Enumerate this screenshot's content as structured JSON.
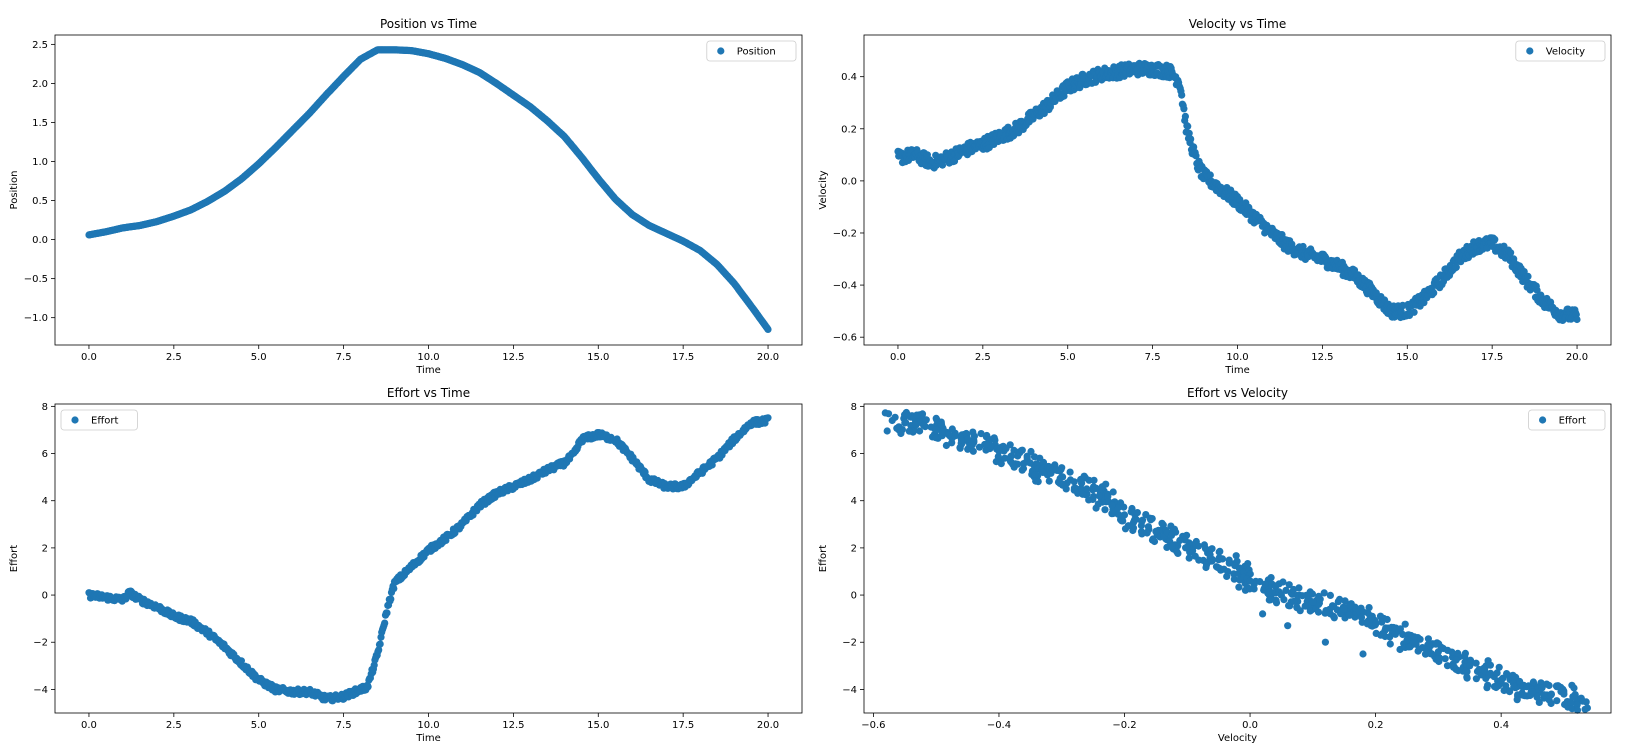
{
  "chart_data": [
    {
      "type": "scatter",
      "title": "Position vs Time",
      "xlabel": "Time",
      "ylabel": "Position",
      "xlim": [
        -1.0,
        21.0
      ],
      "ylim": [
        -1.35,
        2.62
      ],
      "xticks": [
        0.0,
        2.5,
        5.0,
        7.5,
        10.0,
        12.5,
        15.0,
        17.5,
        20.0
      ],
      "xtick_labels": [
        "0.0",
        "2.5",
        "5.0",
        "7.5",
        "10.0",
        "12.5",
        "15.0",
        "17.5",
        "20.0"
      ],
      "yticks": [
        -1.0,
        -0.5,
        0.0,
        0.5,
        1.0,
        1.5,
        2.0,
        2.5
      ],
      "ytick_labels": [
        "−1.0",
        "−0.5",
        "0.0",
        "0.5",
        "1.0",
        "1.5",
        "2.0",
        "2.5"
      ],
      "legend": "top-right",
      "series": [
        {
          "name": "Position",
          "x": [
            0,
            0.5,
            1,
            1.5,
            2,
            2.5,
            3,
            3.5,
            4,
            4.5,
            5,
            5.5,
            6,
            6.5,
            7,
            7.5,
            8,
            8.5,
            9,
            9.5,
            10,
            10.5,
            11,
            11.5,
            12,
            12.5,
            13,
            13.5,
            14,
            14.5,
            15,
            15.5,
            16,
            16.5,
            17,
            17.5,
            18,
            18.5,
            19,
            19.5,
            20
          ],
          "y": [
            0.06,
            0.1,
            0.15,
            0.18,
            0.23,
            0.3,
            0.38,
            0.49,
            0.62,
            0.78,
            0.97,
            1.18,
            1.4,
            1.62,
            1.86,
            2.09,
            2.31,
            2.43,
            2.43,
            2.42,
            2.38,
            2.32,
            2.24,
            2.14,
            2.0,
            1.85,
            1.7,
            1.52,
            1.32,
            1.06,
            0.78,
            0.52,
            0.32,
            0.18,
            0.08,
            -0.02,
            -0.14,
            -0.32,
            -0.56,
            -0.85,
            -1.15
          ]
        }
      ]
    },
    {
      "type": "scatter",
      "title": "Velocity vs Time",
      "xlabel": "Time",
      "ylabel": "Velocity",
      "xlim": [
        -1.0,
        21.0
      ],
      "ylim": [
        -0.63,
        0.56
      ],
      "xticks": [
        0.0,
        2.5,
        5.0,
        7.5,
        10.0,
        12.5,
        15.0,
        17.5,
        20.0
      ],
      "xtick_labels": [
        "0.0",
        "2.5",
        "5.0",
        "7.5",
        "10.0",
        "12.5",
        "15.0",
        "17.5",
        "20.0"
      ],
      "yticks": [
        -0.6,
        -0.4,
        -0.2,
        0.0,
        0.2,
        0.4
      ],
      "ytick_labels": [
        "−0.6",
        "−0.4",
        "−0.2",
        "0.0",
        "0.2",
        "0.4"
      ],
      "legend": "top-right",
      "series": [
        {
          "name": "Velocity",
          "x": [
            0,
            0.5,
            1,
            1.5,
            2,
            2.5,
            3,
            3.5,
            4,
            4.5,
            5,
            5.5,
            6,
            6.5,
            7,
            7.5,
            8,
            8.3,
            8.5,
            8.8,
            9,
            9.5,
            10,
            10.5,
            11,
            11.5,
            12,
            12.5,
            13,
            13.5,
            14,
            14.5,
            15,
            15.5,
            16,
            16.5,
            17,
            17.5,
            18,
            18.5,
            19,
            19.5,
            20
          ],
          "y": [
            0.09,
            0.1,
            0.07,
            0.09,
            0.12,
            0.14,
            0.17,
            0.2,
            0.25,
            0.3,
            0.36,
            0.39,
            0.41,
            0.42,
            0.43,
            0.43,
            0.42,
            0.38,
            0.2,
            0.07,
            0.02,
            -0.03,
            -0.08,
            -0.14,
            -0.2,
            -0.25,
            -0.28,
            -0.3,
            -0.33,
            -0.37,
            -0.43,
            -0.5,
            -0.5,
            -0.45,
            -0.38,
            -0.3,
            -0.25,
            -0.24,
            -0.29,
            -0.38,
            -0.46,
            -0.51,
            -0.52
          ]
        }
      ]
    },
    {
      "type": "scatter",
      "title": "Effort vs Time",
      "xlabel": "Time",
      "ylabel": "Effort",
      "xlim": [
        -1.0,
        21.0
      ],
      "ylim": [
        -5.0,
        8.1
      ],
      "xticks": [
        0.0,
        2.5,
        5.0,
        7.5,
        10.0,
        12.5,
        15.0,
        17.5,
        20.0
      ],
      "xtick_labels": [
        "0.0",
        "2.5",
        "5.0",
        "7.5",
        "10.0",
        "12.5",
        "15.0",
        "17.5",
        "20.0"
      ],
      "yticks": [
        -4,
        -2,
        0,
        2,
        4,
        6,
        8
      ],
      "ytick_labels": [
        "−4",
        "−2",
        "0",
        "2",
        "4",
        "6",
        "8"
      ],
      "legend": "top-left",
      "series": [
        {
          "name": "Effort",
          "x": [
            0,
            0.5,
            1,
            1.2,
            1.5,
            2,
            2.5,
            3,
            3.5,
            4,
            4.5,
            5,
            5.5,
            6,
            6.5,
            7,
            7.5,
            8,
            8.2,
            8.5,
            8.8,
            9,
            9.5,
            10,
            10.5,
            11,
            11.5,
            12,
            12.5,
            13,
            13.5,
            14,
            14.3,
            14.5,
            15,
            15.5,
            16,
            16.5,
            17,
            17.5,
            18,
            18.5,
            19,
            19.5,
            20
          ],
          "y": [
            0,
            -0.1,
            -0.2,
            0.1,
            -0.2,
            -0.5,
            -0.9,
            -1.1,
            -1.6,
            -2.2,
            -2.9,
            -3.6,
            -4.0,
            -4.1,
            -4.1,
            -4.4,
            -4.3,
            -4.0,
            -3.9,
            -2.5,
            -0.5,
            0.5,
            1.2,
            1.9,
            2.4,
            3.0,
            3.8,
            4.3,
            4.6,
            4.9,
            5.3,
            5.6,
            6.0,
            6.6,
            6.8,
            6.6,
            5.8,
            4.9,
            4.6,
            4.6,
            5.2,
            5.8,
            6.6,
            7.3,
            7.4
          ]
        }
      ]
    },
    {
      "type": "scatter",
      "title": "Effort vs Velocity",
      "xlabel": "Velocity",
      "ylabel": "Effort",
      "xlim": [
        -0.615,
        0.575
      ],
      "ylim": [
        -5.0,
        8.1
      ],
      "xticks": [
        -0.6,
        -0.4,
        -0.2,
        0.0,
        0.2,
        0.4
      ],
      "xtick_labels": [
        "−0.6",
        "−0.4",
        "−0.2",
        "0.0",
        "0.2",
        "0.4"
      ],
      "yticks": [
        -4,
        -2,
        0,
        2,
        4,
        6,
        8
      ],
      "ytick_labels": [
        "−4",
        "−2",
        "0",
        "2",
        "4",
        "6",
        "8"
      ],
      "legend": "top-right",
      "series": [
        {
          "name": "Effort",
          "x": [
            -0.57,
            -0.55,
            -0.52,
            -0.5,
            -0.48,
            -0.45,
            -0.42,
            -0.4,
            -0.38,
            -0.35,
            -0.33,
            -0.3,
            -0.28,
            -0.26,
            -0.24,
            -0.22,
            -0.2,
            -0.15,
            -0.1,
            -0.05,
            0.0,
            0.05,
            0.1,
            0.15,
            0.2,
            0.22,
            0.25,
            0.3,
            0.35,
            0.38,
            0.4,
            0.42,
            0.45,
            0.48,
            0.5,
            0.53,
            -0.3,
            -0.27,
            -0.23,
            0.02,
            0.06,
            0.12,
            0.18
          ],
          "y": [
            7.4,
            7.3,
            7.2,
            7.0,
            6.8,
            6.6,
            6.4,
            6.1,
            5.9,
            5.6,
            5.2,
            5.0,
            4.8,
            4.5,
            4.2,
            3.8,
            3.4,
            2.7,
            2.0,
            1.5,
            0.6,
            0.0,
            -0.3,
            -0.6,
            -1.2,
            -1.4,
            -1.9,
            -2.4,
            -3.0,
            -3.4,
            -3.6,
            -3.9,
            -4.1,
            -4.2,
            -4.2,
            -4.5,
            5.4,
            4.9,
            4.7,
            -0.8,
            -1.3,
            -2.0,
            -2.5
          ]
        }
      ]
    }
  ],
  "style": {
    "point_color": "#1f77b4"
  }
}
